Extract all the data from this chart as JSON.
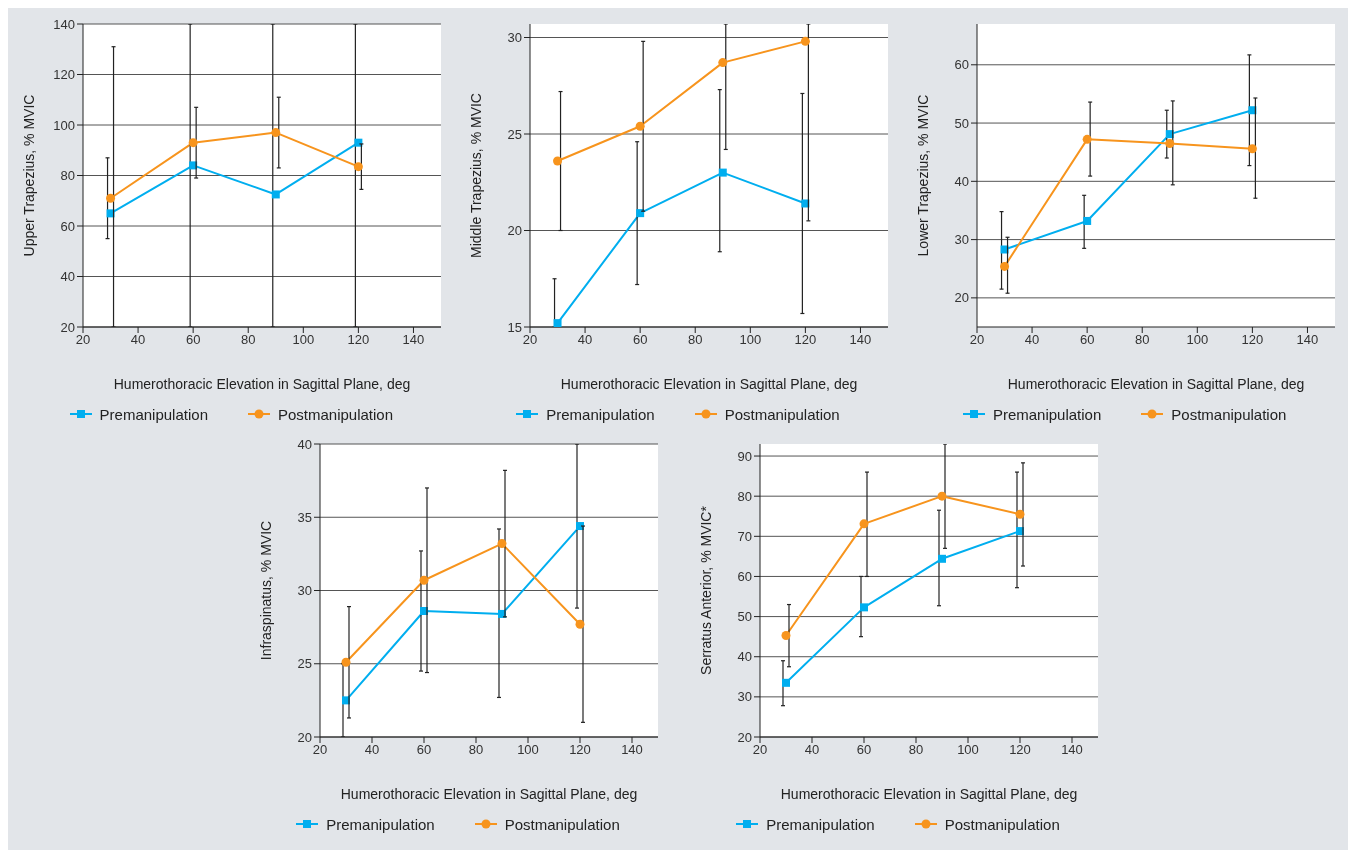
{
  "chart_data": [
    {
      "type": "line",
      "xlabel": "Humerothoracic Elevation in Sagittal Plane, deg",
      "ylabel": "Upper Trapezius, % MVIC",
      "x": [
        30,
        60,
        90,
        120
      ],
      "xlim": [
        20,
        150
      ],
      "xticks": [
        20,
        40,
        60,
        80,
        100,
        120,
        140
      ],
      "ylim": [
        20,
        140
      ],
      "yticks": [
        20,
        40,
        60,
        80,
        100,
        120,
        140
      ],
      "grid": "y",
      "legend": "bottom",
      "series": [
        {
          "name": "Premanipulation",
          "color": "#00aeef",
          "marker": "square",
          "values": [
            65,
            84,
            72.5,
            93
          ],
          "errors": [
            [
              55,
              87
            ],
            [
              20,
              140
            ],
            [
              20,
              140
            ],
            [
              20,
              140
            ]
          ]
        },
        {
          "name": "Postmanipulation",
          "color": "#f7941d",
          "marker": "circle",
          "values": [
            71,
            93,
            97,
            83.5
          ],
          "errors": [
            [
              20,
              131
            ],
            [
              79,
              107
            ],
            [
              83,
              111
            ],
            [
              74.5,
              92.5
            ]
          ]
        }
      ]
    },
    {
      "type": "line",
      "xlabel": "Humerothoracic Elevation in Sagittal Plane, deg",
      "ylabel": "Middle Trapezius, % MVIC",
      "x": [
        30,
        60,
        90,
        120
      ],
      "xlim": [
        20,
        150
      ],
      "xticks": [
        20,
        40,
        60,
        80,
        100,
        120,
        140
      ],
      "ylim": [
        15,
        30.7
      ],
      "yticks": [
        15,
        20,
        25,
        30
      ],
      "grid": "y",
      "legend": "bottom",
      "series": [
        {
          "name": "Premanipulation",
          "color": "#00aeef",
          "marker": "square",
          "values": [
            15.2,
            20.9,
            23.0,
            21.4
          ],
          "errors": [
            [
              15,
              17.5
            ],
            [
              17.2,
              24.6
            ],
            [
              18.9,
              27.3
            ],
            [
              15.7,
              27.1
            ]
          ]
        },
        {
          "name": "Postmanipulation",
          "color": "#f7941d",
          "marker": "circle",
          "values": [
            23.6,
            25.4,
            28.7,
            29.8
          ],
          "errors": [
            [
              20,
              27.2
            ],
            [
              21,
              29.8
            ],
            [
              24.2,
              30.7
            ],
            [
              20.5,
              30.7
            ]
          ]
        }
      ]
    },
    {
      "type": "line",
      "xlabel": "Humerothoracic Elevation in Sagittal Plane, deg",
      "ylabel": "Lower Trapezius, % MVIC",
      "x": [
        30,
        60,
        90,
        120
      ],
      "xlim": [
        20,
        150
      ],
      "xticks": [
        20,
        40,
        60,
        80,
        100,
        120,
        140
      ],
      "ylim": [
        15,
        67
      ],
      "yticks": [
        20,
        30,
        40,
        50,
        60
      ],
      "grid": "y",
      "legend": "bottom",
      "series": [
        {
          "name": "Premanipulation",
          "color": "#00aeef",
          "marker": "square",
          "values": [
            28.3,
            33.2,
            48.1,
            52.2
          ],
          "errors": [
            [
              21.5,
              34.8
            ],
            [
              28.5,
              37.6
            ],
            [
              44,
              52.2
            ],
            [
              42.7,
              61.7
            ]
          ]
        },
        {
          "name": "Postmanipulation",
          "color": "#f7941d",
          "marker": "circle",
          "values": [
            25.4,
            47.2,
            46.5,
            45.6
          ],
          "errors": [
            [
              20.8,
              30.4
            ],
            [
              40.9,
              53.6
            ],
            [
              39.4,
              53.8
            ],
            [
              37.1,
              54.3
            ]
          ]
        }
      ]
    },
    {
      "type": "line",
      "xlabel": "Humerothoracic Elevation in Sagittal Plane, deg",
      "ylabel": "Infraspinatus, % MVIC",
      "x": [
        30,
        60,
        90,
        120
      ],
      "xlim": [
        20,
        150
      ],
      "xticks": [
        20,
        40,
        60,
        80,
        100,
        120,
        140
      ],
      "ylim": [
        20,
        40
      ],
      "yticks": [
        20,
        25,
        30,
        35,
        40
      ],
      "grid": "y",
      "legend": "bottom",
      "series": [
        {
          "name": "Premanipulation",
          "color": "#00aeef",
          "marker": "square",
          "values": [
            22.5,
            28.6,
            28.4,
            34.4
          ],
          "errors": [
            [
              20,
              25
            ],
            [
              24.5,
              32.7
            ],
            [
              22.7,
              34.2
            ],
            [
              28.8,
              40
            ]
          ]
        },
        {
          "name": "Postmanipulation",
          "color": "#f7941d",
          "marker": "circle",
          "values": [
            25.1,
            30.7,
            33.2,
            27.7
          ],
          "errors": [
            [
              21.3,
              28.9
            ],
            [
              24.4,
              37
            ],
            [
              28.2,
              38.2
            ],
            [
              21,
              34.4
            ]
          ]
        }
      ]
    },
    {
      "type": "line",
      "xlabel": "Humerothoracic Elevation in Sagittal Plane, deg",
      "ylabel": "Serratus Anterior, % MVIC*",
      "x": [
        30,
        60,
        90,
        120
      ],
      "xlim": [
        20,
        150
      ],
      "xticks": [
        20,
        40,
        60,
        80,
        100,
        120,
        140
      ],
      "ylim": [
        20,
        93
      ],
      "yticks": [
        20,
        30,
        40,
        50,
        60,
        70,
        80,
        90
      ],
      "grid": "y",
      "legend": "bottom",
      "series": [
        {
          "name": "Premanipulation",
          "color": "#00aeef",
          "marker": "square",
          "values": [
            33.5,
            52.3,
            64.4,
            71.3
          ],
          "errors": [
            [
              27.8,
              39
            ],
            [
              45,
              60
            ],
            [
              52.7,
              76.5
            ],
            [
              57.2,
              86
            ]
          ]
        },
        {
          "name": "Postmanipulation",
          "color": "#f7941d",
          "marker": "circle",
          "values": [
            45.3,
            73.1,
            80,
            75.5
          ],
          "errors": [
            [
              37.5,
              53
            ],
            [
              60,
              86
            ],
            [
              67,
              93
            ],
            [
              62.6,
              88.3
            ]
          ]
        }
      ]
    }
  ]
}
